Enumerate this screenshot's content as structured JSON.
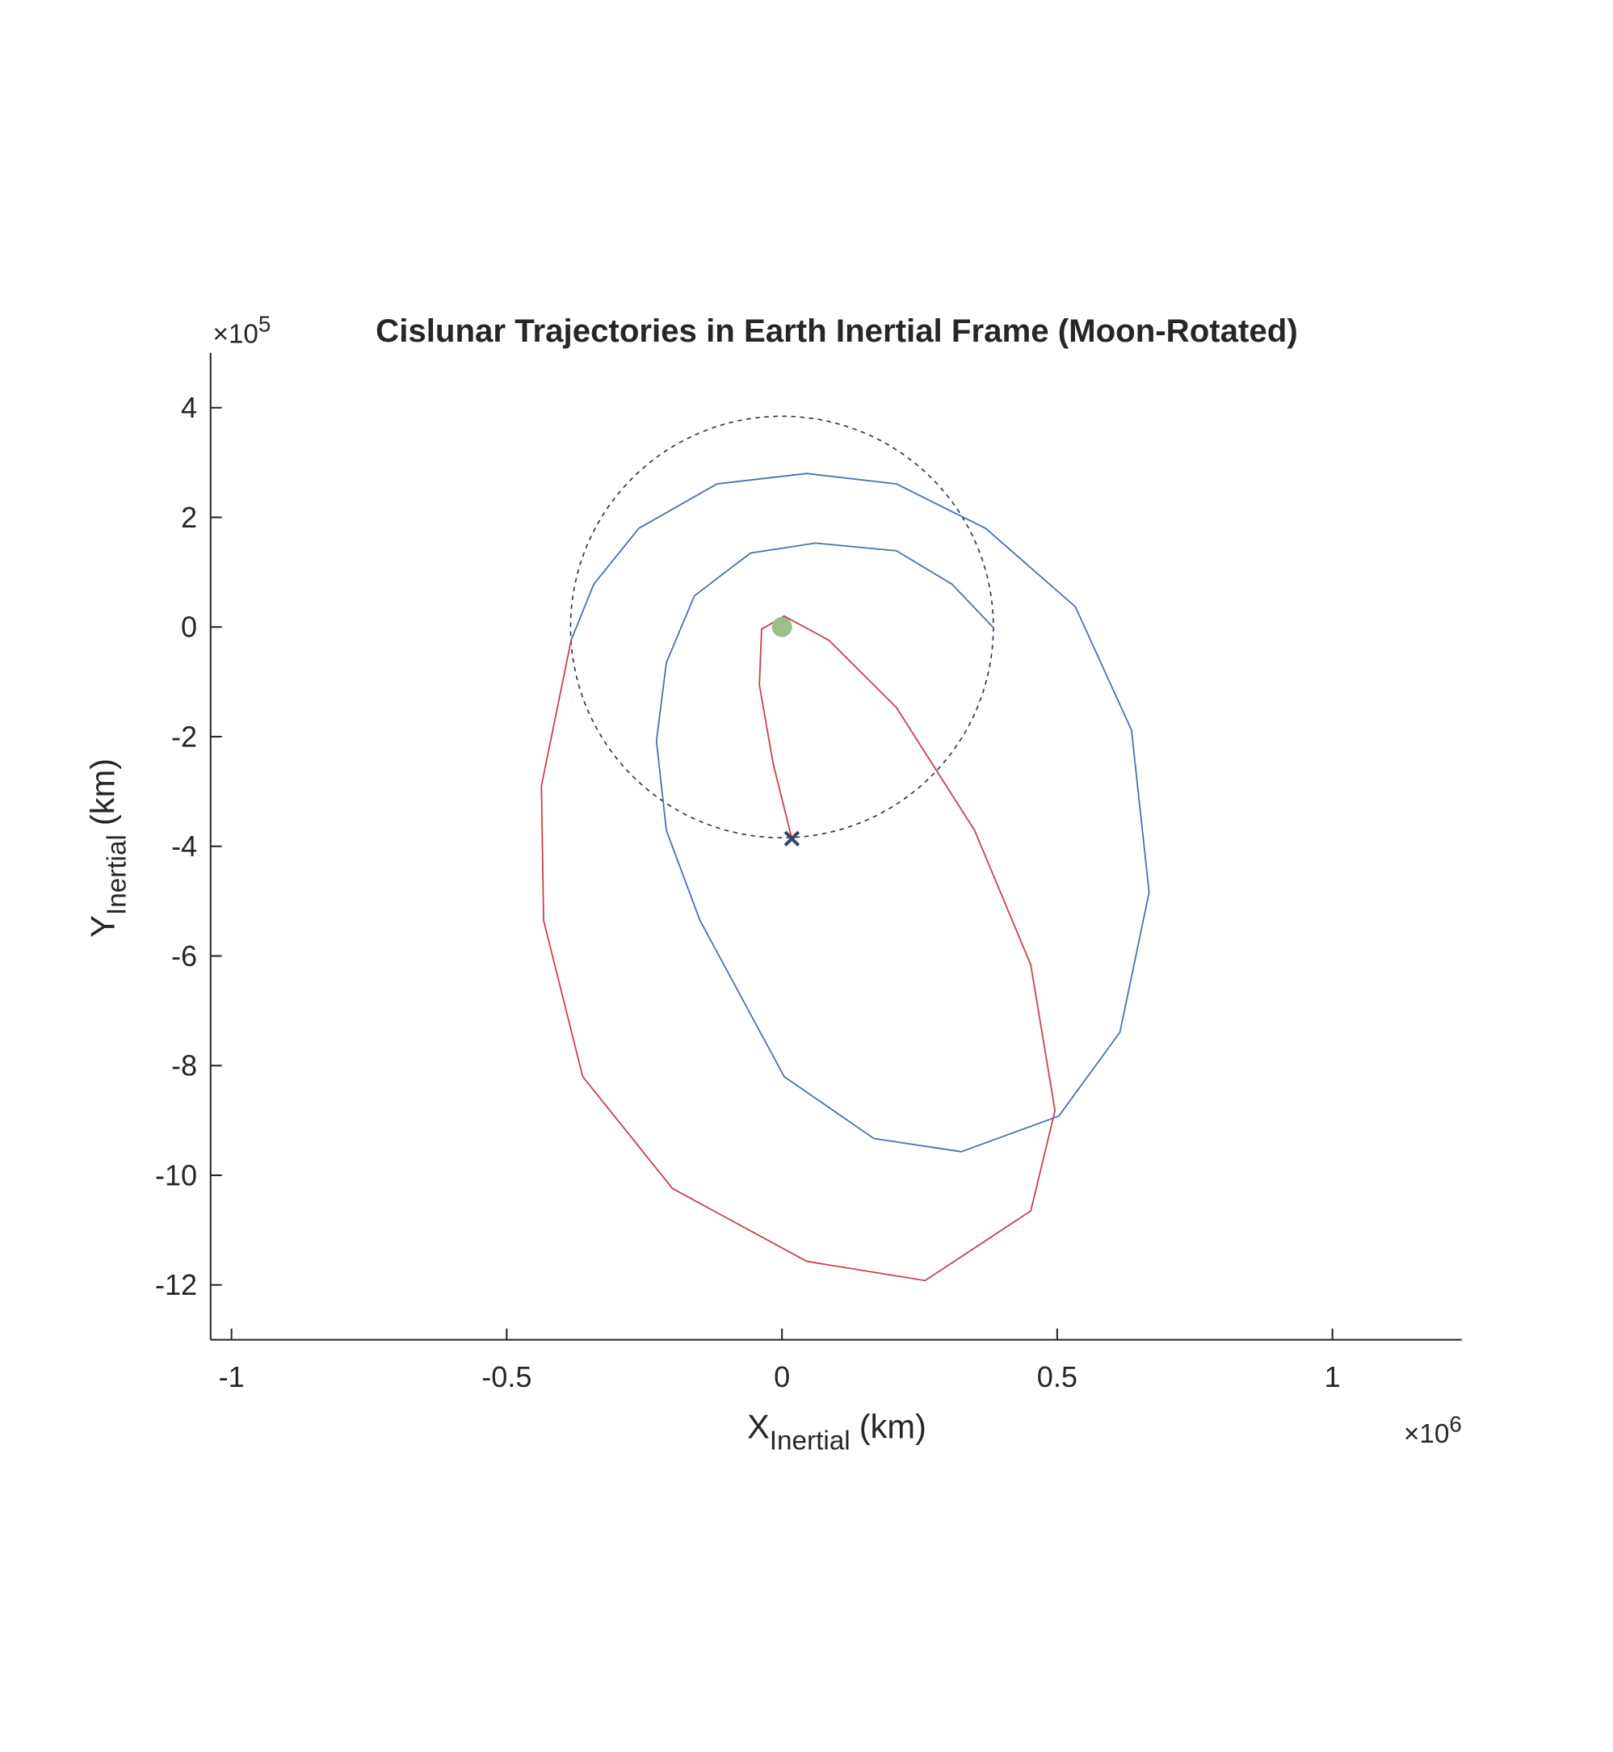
{
  "chart_data": {
    "type": "line",
    "title": "Cislunar Trajectories in Earth Inertial Frame (Moon-Rotated)",
    "x_label": {
      "main": "X",
      "sub": "Inertial",
      "unit": "(km)"
    },
    "y_label": {
      "main": "Y",
      "sub": "Inertial",
      "unit": "(km)"
    },
    "x_exponent": {
      "base": "×10",
      "power": "6"
    },
    "y_exponent": {
      "base": "×10",
      "power": "5"
    },
    "xlim": [
      -1.038,
      1.235
    ],
    "ylim": [
      -13,
      5
    ],
    "xticks": [
      -1,
      -0.5,
      0,
      0.5,
      1
    ],
    "yticks": [
      -12,
      -10,
      -8,
      -6,
      -4,
      -2,
      0,
      2,
      4
    ],
    "series": [
      {
        "color": "#4a72a8",
        "x": [
          0.383,
          0.309,
          0.208,
          0.061,
          -0.057,
          -0.159,
          -0.21,
          -0.228,
          -0.21,
          -0.149,
          0.004,
          0.167,
          0.326,
          0.503,
          0.614,
          0.667,
          0.635,
          0.533,
          0.37,
          0.208,
          0.045,
          -0.118,
          -0.26,
          -0.342,
          -0.383
        ],
        "values": [
          0,
          0.78,
          1.39,
          1.53,
          1.35,
          0.57,
          -0.65,
          -2.08,
          -3.71,
          -5.35,
          -8.2,
          -9.33,
          -9.57,
          -8.92,
          -7.39,
          -4.84,
          -1.88,
          0.37,
          1.8,
          2.61,
          2.8,
          2.61,
          1.8,
          0.78,
          -0.24
        ]
      },
      {
        "color": "#c8404f",
        "x": [
          0.018,
          -0.016,
          -0.041,
          -0.037,
          0.004,
          0.085,
          0.208,
          0.35,
          0.452,
          0.496,
          0.452,
          0.26,
          0.045,
          -0.199,
          -0.362,
          -0.433,
          -0.437,
          -0.383
        ],
        "values": [
          -3.86,
          -2.49,
          -1.06,
          -0.04,
          0.2,
          -0.24,
          -1.47,
          -3.71,
          -6.16,
          -8.82,
          -10.65,
          -11.92,
          -11.57,
          -10.24,
          -8.2,
          -5.35,
          -2.9,
          -0.24
        ]
      }
    ],
    "orbit": {
      "cx": 0,
      "cy": 0,
      "rx": 0.384,
      "ry": 3.844,
      "color": "#2a3550"
    },
    "earth": {
      "x": 0,
      "y": 0,
      "color": "#9cbf8a"
    },
    "marker": {
      "x": 0.018,
      "y": -3.86,
      "color": "#3a4660"
    }
  }
}
